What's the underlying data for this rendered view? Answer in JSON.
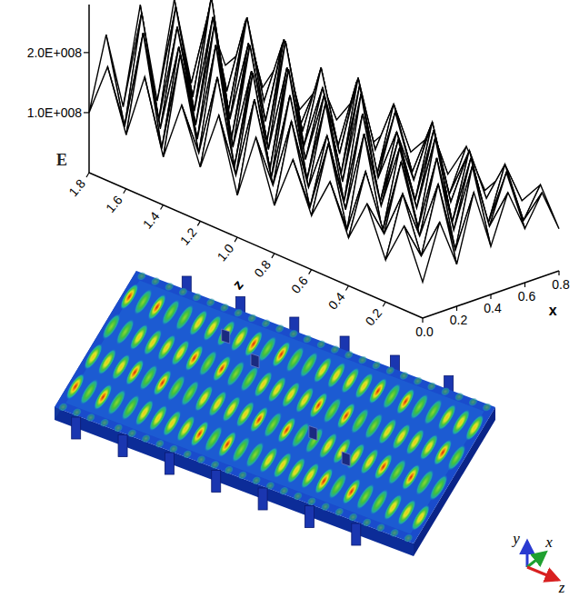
{
  "chart_data": {
    "type": "surface",
    "xlabel": "x",
    "ylabel": "E",
    "zlabel": "z",
    "x": [
      0,
      0.1,
      0.2,
      0.3,
      0.4,
      0.5,
      0.6,
      0.7,
      0.8
    ],
    "z": [
      0,
      0.1,
      0.2,
      0.3,
      0.4,
      0.5,
      0.6,
      0.7,
      0.8,
      0.9,
      1.0,
      1.1,
      1.2,
      1.3,
      1.4,
      1.5,
      1.6,
      1.7,
      1.8
    ],
    "values": [
      [
        60000000.0,
        150000000.0,
        70000000.0,
        180000000.0,
        80000000.0,
        160000000.0,
        90000000.0,
        140000000.0,
        70000000.0
      ],
      [
        140000000.0,
        80000000.0,
        190000000.0,
        70000000.0,
        200000000.0,
        90000000.0,
        170000000.0,
        80000000.0,
        130000000.0
      ],
      [
        70000000.0,
        170000000.0,
        90000000.0,
        210000000.0,
        80000000.0,
        190000000.0,
        70000000.0,
        160000000.0,
        90000000.0
      ],
      [
        150000000.0,
        90000000.0,
        200000000.0,
        80000000.0,
        220000000.0,
        70000000.0,
        180000000.0,
        90000000.0,
        120000000.0
      ],
      [
        80000000.0,
        180000000.0,
        70000000.0,
        200000000.0,
        90000000.0,
        210000000.0,
        80000000.0,
        150000000.0,
        80000000.0
      ],
      [
        160000000.0,
        70000000.0,
        220000000.0,
        90000000.0,
        190000000.0,
        80000000.0,
        200000000.0,
        70000000.0,
        140000000.0
      ],
      [
        90000000.0,
        200000000.0,
        80000000.0,
        230000000.0,
        70000000.0,
        180000000.0,
        90000000.0,
        170000000.0,
        80000000.0
      ],
      [
        170000000.0,
        80000000.0,
        190000000.0,
        70000000.0,
        240000000.0,
        90000000.0,
        190000000.0,
        80000000.0,
        130000000.0
      ],
      [
        80000000.0,
        210000000.0,
        90000000.0,
        220000000.0,
        80000000.0,
        230000000.0,
        70000000.0,
        180000000.0,
        90000000.0
      ],
      [
        180000000.0,
        90000000.0,
        230000000.0,
        80000000.0,
        210000000.0,
        70000000.0,
        220000000.0,
        90000000.0,
        120000000.0
      ],
      [
        70000000.0,
        220000000.0,
        80000000.0,
        250000000.0,
        90000000.0,
        200000000.0,
        80000000.0,
        190000000.0,
        80000000.0
      ],
      [
        190000000.0,
        80000000.0,
        240000000.0,
        70000000.0,
        230000000.0,
        90000000.0,
        210000000.0,
        70000000.0,
        140000000.0
      ],
      [
        90000000.0,
        230000000.0,
        70000000.0,
        220000000.0,
        80000000.0,
        250000000.0,
        90000000.0,
        170000000.0,
        90000000.0
      ],
      [
        180000000.0,
        90000000.0,
        260000000.0,
        80000000.0,
        240000000.0,
        70000000.0,
        230000000.0,
        80000000.0,
        130000000.0
      ],
      [
        80000000.0,
        240000000.0,
        90000000.0,
        270000000.0,
        70000000.0,
        220000000.0,
        80000000.0,
        200000000.0,
        80000000.0
      ],
      [
        200000000.0,
        70000000.0,
        230000000.0,
        90000000.0,
        260000000.0,
        80000000.0,
        240000000.0,
        90000000.0,
        150000000.0
      ],
      [
        90000000.0,
        250000000.0,
        80000000.0,
        240000000.0,
        90000000.0,
        270000000.0,
        70000000.0,
        210000000.0,
        90000000.0
      ],
      [
        190000000.0,
        80000000.0,
        260000000.0,
        70000000.0,
        250000000.0,
        90000000.0,
        230000000.0,
        80000000.0,
        140000000.0
      ],
      [
        100000000.0,
        220000000.0,
        90000000.0,
        250000000.0,
        80000000.0,
        240000000.0,
        90000000.0,
        190000000.0,
        100000000.0
      ]
    ],
    "xlim": [
      0,
      0.8
    ],
    "xticks": [
      {
        "value": 0,
        "label": "0.0"
      },
      0.2,
      0.4,
      0.6,
      0.8
    ],
    "zlim": [
      0,
      1.8
    ],
    "zticks": [
      0.2,
      0.4,
      0.6,
      0.8,
      {
        "value": 1,
        "label": "1.0"
      },
      1.2,
      1.4,
      1.6,
      1.8
    ],
    "ylim": [
      0,
      280000000.0
    ],
    "yticks": [
      {
        "value": 100000000.0,
        "label": "1.0E+008"
      },
      {
        "value": 200000000.0,
        "label": "2.0E+008"
      }
    ],
    "grid": false
  },
  "figure": {
    "triad": [
      "y",
      "x",
      "z"
    ]
  }
}
